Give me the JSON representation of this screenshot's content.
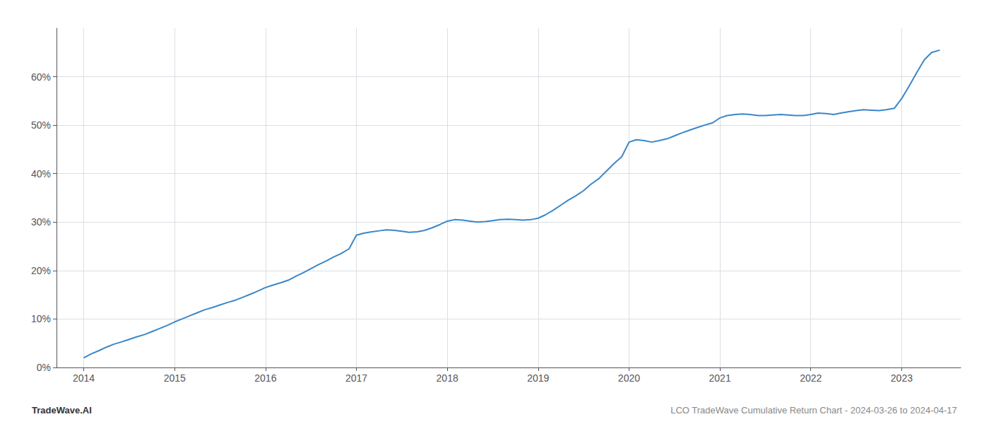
{
  "chart_data": {
    "type": "line",
    "title": "LCO TradeWave Cumulative Return Chart - 2024-03-26 to 2024-04-17",
    "annotations": [
      "TradeWave.AI"
    ],
    "color": "#3a87c8",
    "x": [
      2014.0,
      2014.08,
      2014.17,
      2014.25,
      2014.33,
      2014.42,
      2014.5,
      2014.58,
      2014.67,
      2014.75,
      2014.83,
      2014.92,
      2015.0,
      2015.08,
      2015.17,
      2015.25,
      2015.33,
      2015.42,
      2015.5,
      2015.58,
      2015.67,
      2015.75,
      2015.83,
      2015.92,
      2016.0,
      2016.08,
      2016.17,
      2016.25,
      2016.33,
      2016.42,
      2016.5,
      2016.58,
      2016.67,
      2016.75,
      2016.83,
      2016.92,
      2017.0,
      2017.08,
      2017.17,
      2017.25,
      2017.33,
      2017.42,
      2017.5,
      2017.58,
      2017.67,
      2017.75,
      2017.83,
      2017.92,
      2018.0,
      2018.08,
      2018.17,
      2018.25,
      2018.33,
      2018.42,
      2018.5,
      2018.58,
      2018.67,
      2018.75,
      2018.83,
      2018.92,
      2019.0,
      2019.08,
      2019.17,
      2019.25,
      2019.33,
      2019.42,
      2019.5,
      2019.58,
      2019.67,
      2019.75,
      2019.83,
      2019.92,
      2020.0,
      2020.08,
      2020.17,
      2020.25,
      2020.33,
      2020.42,
      2020.5,
      2020.58,
      2020.67,
      2020.75,
      2020.83,
      2020.92,
      2021.0,
      2021.08,
      2021.17,
      2021.25,
      2021.33,
      2021.42,
      2021.5,
      2021.58,
      2021.67,
      2021.75,
      2021.83,
      2021.92,
      2022.0,
      2022.08,
      2022.17,
      2022.25,
      2022.33,
      2022.42,
      2022.5,
      2022.58,
      2022.67,
      2022.75,
      2022.83,
      2022.92,
      2023.0,
      2023.08,
      2023.17,
      2023.25,
      2023.33,
      2023.42
    ],
    "values": [
      2.0,
      2.8,
      3.5,
      4.2,
      4.8,
      5.3,
      5.8,
      6.3,
      6.8,
      7.4,
      8.0,
      8.7,
      9.4,
      10.0,
      10.7,
      11.3,
      11.9,
      12.4,
      12.9,
      13.4,
      13.9,
      14.5,
      15.1,
      15.8,
      16.5,
      17.0,
      17.5,
      18.0,
      18.8,
      19.6,
      20.4,
      21.2,
      22.0,
      22.8,
      23.5,
      24.5,
      27.3,
      27.7,
      28.0,
      28.2,
      28.4,
      28.3,
      28.1,
      27.9,
      28.0,
      28.3,
      28.8,
      29.5,
      30.2,
      30.5,
      30.4,
      30.2,
      30.0,
      30.1,
      30.3,
      30.5,
      30.6,
      30.5,
      30.4,
      30.5,
      30.8,
      31.5,
      32.5,
      33.5,
      34.5,
      35.5,
      36.5,
      37.8,
      39.0,
      40.5,
      42.0,
      43.5,
      46.5,
      47.0,
      46.8,
      46.5,
      46.8,
      47.2,
      47.8,
      48.4,
      49.0,
      49.5,
      50.0,
      50.5,
      51.5,
      52.0,
      52.2,
      52.3,
      52.2,
      52.0,
      52.0,
      52.1,
      52.2,
      52.1,
      52.0,
      52.0,
      52.2,
      52.5,
      52.4,
      52.2,
      52.5,
      52.8,
      53.0,
      53.2,
      53.1,
      53.0,
      53.2,
      53.5,
      55.5,
      58.0,
      61.0,
      63.5,
      65.0,
      65.5
    ],
    "xlim": [
      2013.7,
      2023.65
    ],
    "xticks": [
      2014,
      2015,
      2016,
      2017,
      2018,
      2019,
      2020,
      2021,
      2022,
      2023
    ],
    "ylim": [
      0,
      70
    ],
    "yticks": [
      {
        "value": 0,
        "label": "0%"
      },
      {
        "value": 10,
        "label": "10%"
      },
      {
        "value": 20,
        "label": "20%"
      },
      {
        "value": 30,
        "label": "30%"
      },
      {
        "value": 40,
        "label": "40%"
      },
      {
        "value": 50,
        "label": "50%"
      },
      {
        "value": 60,
        "label": "60%"
      }
    ],
    "grid": true
  }
}
